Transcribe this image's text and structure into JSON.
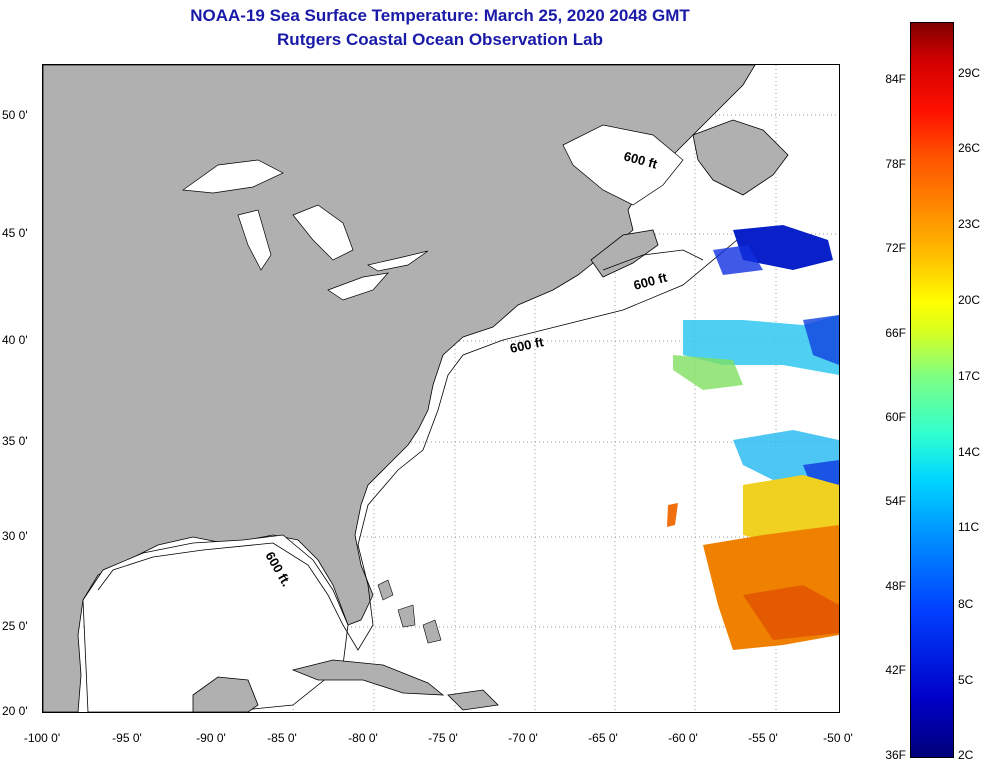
{
  "header": {
    "title": "NOAA-19 Sea Surface Temperature:  March 25, 2020 2048 GMT",
    "subtitle": "Rutgers Coastal Ocean Observation Lab"
  },
  "map": {
    "lat_labels": [
      "50 0'",
      "45 0'",
      "40 0'",
      "35 0'",
      "30 0'",
      "25 0'",
      "20 0'"
    ],
    "lon_labels": [
      "-100 0'",
      "-95 0'",
      "-90 0'",
      "-85 0'",
      "-80 0'",
      "-75 0'",
      "-70 0'",
      "-65 0'",
      "-60 0'",
      "-55 0'",
      "-50 0'"
    ],
    "contour_labels": [
      "600 ft",
      "600 ft",
      "600 ft",
      "600 ft."
    ],
    "colors": {
      "land": "#b0b0b0",
      "ocean": "#ffffff",
      "contour": "#000000"
    }
  },
  "colorbar": {
    "fahrenheit_labels": [
      "84F",
      "78F",
      "72F",
      "66F",
      "60F",
      "54F",
      "48F",
      "42F",
      "36F"
    ],
    "celsius_labels": [
      "29C",
      "26C",
      "23C",
      "20C",
      "17C",
      "14C",
      "11C",
      "8C",
      "5C",
      "2C"
    ]
  }
}
